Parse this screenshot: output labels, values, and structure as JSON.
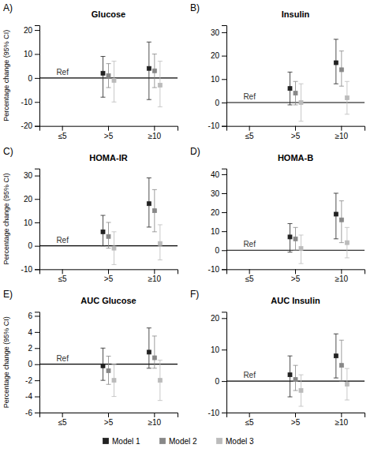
{
  "chart_data": [
    {
      "type": "errorbar",
      "title": "Glucose",
      "panel_label": "A)",
      "annotation": "Ref",
      "y_label": "Percentage change (95% CI)",
      "categories": [
        "≤5",
        ">5",
        "≥10"
      ],
      "ylim": [
        -20,
        22
      ],
      "yticks": [
        -20,
        -10,
        0,
        10,
        20
      ],
      "reference_line": 0,
      "grid": false,
      "legend": "bottom",
      "series": [
        {
          "name": "Model 1",
          "color": "#222222",
          "marker": "square",
          "values": [
            null,
            2,
            4
          ],
          "lo": [
            null,
            -8,
            -9
          ],
          "hi": [
            null,
            9,
            15
          ]
        },
        {
          "name": "Model 2",
          "color": "#888888",
          "marker": "square",
          "values": [
            null,
            1,
            3
          ],
          "lo": [
            null,
            -4,
            -4
          ],
          "hi": [
            null,
            6,
            10
          ]
        },
        {
          "name": "Model 3",
          "color": "#bbbbbb",
          "marker": "square",
          "values": [
            null,
            -1,
            -3
          ],
          "lo": [
            null,
            -10,
            -12
          ],
          "hi": [
            null,
            7,
            7
          ]
        }
      ]
    },
    {
      "type": "errorbar",
      "title": "Insulin",
      "panel_label": "B)",
      "annotation": "Ref",
      "categories": [
        "≤5",
        ">5",
        "≥10"
      ],
      "ylim": [
        -10,
        33
      ],
      "yticks": [
        -10,
        0,
        10,
        20,
        30
      ],
      "reference_line": 0,
      "grid": false,
      "series": [
        {
          "name": "Model 1",
          "color": "#222222",
          "marker": "square",
          "values": [
            null,
            6,
            17
          ],
          "lo": [
            null,
            -1,
            8
          ],
          "hi": [
            null,
            13,
            27
          ]
        },
        {
          "name": "Model 2",
          "color": "#888888",
          "marker": "square",
          "values": [
            null,
            4,
            14
          ],
          "lo": [
            null,
            -1,
            7
          ],
          "hi": [
            null,
            9,
            22
          ]
        },
        {
          "name": "Model 3",
          "color": "#bbbbbb",
          "marker": "square",
          "values": [
            null,
            0,
            2
          ],
          "lo": [
            null,
            -8,
            -5
          ],
          "hi": [
            null,
            8,
            9
          ]
        }
      ]
    },
    {
      "type": "errorbar",
      "title": "HOMA-IR",
      "panel_label": "C)",
      "annotation": "Ref",
      "y_label": "Percentage change (95% CI)",
      "categories": [
        "≤5",
        ">5",
        "≥10"
      ],
      "ylim": [
        -10,
        33
      ],
      "yticks": [
        -10,
        0,
        10,
        20,
        30
      ],
      "reference_line": 0,
      "grid": false,
      "series": [
        {
          "name": "Model 1",
          "color": "#222222",
          "marker": "square",
          "values": [
            null,
            6,
            18
          ],
          "lo": [
            null,
            0,
            8
          ],
          "hi": [
            null,
            13,
            29
          ]
        },
        {
          "name": "Model 2",
          "color": "#888888",
          "marker": "square",
          "values": [
            null,
            4,
            15
          ],
          "lo": [
            null,
            -1,
            6
          ],
          "hi": [
            null,
            10,
            24
          ]
        },
        {
          "name": "Model 3",
          "color": "#bbbbbb",
          "marker": "square",
          "values": [
            null,
            -1,
            1
          ],
          "lo": [
            null,
            -8,
            -6
          ],
          "hi": [
            null,
            6,
            9
          ]
        }
      ]
    },
    {
      "type": "errorbar",
      "title": "HOMA-B",
      "panel_label": "D)",
      "annotation": "Ref",
      "categories": [
        "≤5",
        ">5",
        "≥10"
      ],
      "ylim": [
        -10,
        43
      ],
      "yticks": [
        -10,
        0,
        10,
        20,
        30,
        40
      ],
      "reference_line": 0,
      "grid": false,
      "series": [
        {
          "name": "Model 1",
          "color": "#222222",
          "marker": "square",
          "values": [
            null,
            7,
            19
          ],
          "lo": [
            null,
            -1,
            6
          ],
          "hi": [
            null,
            14,
            30
          ]
        },
        {
          "name": "Model 2",
          "color": "#888888",
          "marker": "square",
          "values": [
            null,
            6,
            16
          ],
          "lo": [
            null,
            0,
            4
          ],
          "hi": [
            null,
            12,
            26
          ]
        },
        {
          "name": "Model 3",
          "color": "#bbbbbb",
          "marker": "square",
          "values": [
            null,
            1,
            4
          ],
          "lo": [
            null,
            -7,
            -4
          ],
          "hi": [
            null,
            8,
            12
          ]
        }
      ]
    },
    {
      "type": "errorbar",
      "title": "AUC Glucose",
      "panel_label": "E)",
      "annotation": "Ref",
      "y_label": "Percentage change (95% CI)",
      "categories": [
        "≤5",
        ">5",
        "≥10"
      ],
      "ylim": [
        -6,
        6.5
      ],
      "yticks": [
        -6,
        -4,
        -2,
        0,
        2,
        4,
        6
      ],
      "reference_line": 0,
      "grid": false,
      "series": [
        {
          "name": "Model 1",
          "color": "#222222",
          "marker": "square",
          "values": [
            null,
            -0.2,
            1.5
          ],
          "lo": [
            null,
            -2,
            -0.5
          ],
          "hi": [
            null,
            2,
            4.5
          ]
        },
        {
          "name": "Model 2",
          "color": "#888888",
          "marker": "square",
          "values": [
            null,
            -0.8,
            0.8
          ],
          "lo": [
            null,
            -2.5,
            -0.5
          ],
          "hi": [
            null,
            1,
            3.5
          ]
        },
        {
          "name": "Model 3",
          "color": "#bbbbbb",
          "marker": "square",
          "values": [
            null,
            -2.0,
            -2.0
          ],
          "lo": [
            null,
            -4,
            -4.5
          ],
          "hi": [
            null,
            0,
            0.5
          ]
        }
      ]
    },
    {
      "type": "errorbar",
      "title": "AUC Insulin",
      "panel_label": "F)",
      "annotation": "Ref",
      "categories": [
        "≤5",
        ">5",
        "≥10"
      ],
      "ylim": [
        -10,
        22
      ],
      "yticks": [
        -10,
        0,
        10,
        20
      ],
      "reference_line": 0,
      "grid": false,
      "series": [
        {
          "name": "Model 1",
          "color": "#222222",
          "marker": "square",
          "values": [
            null,
            2,
            8
          ],
          "lo": [
            null,
            -5,
            1
          ],
          "hi": [
            null,
            8,
            15
          ]
        },
        {
          "name": "Model 2",
          "color": "#888888",
          "marker": "square",
          "values": [
            null,
            0.5,
            5
          ],
          "lo": [
            null,
            -3,
            0
          ],
          "hi": [
            null,
            5,
            13
          ]
        },
        {
          "name": "Model 3",
          "color": "#bbbbbb",
          "marker": "square",
          "values": [
            null,
            -3,
            -1
          ],
          "lo": [
            null,
            -8,
            -6
          ],
          "hi": [
            null,
            2,
            4
          ]
        }
      ]
    }
  ]
}
